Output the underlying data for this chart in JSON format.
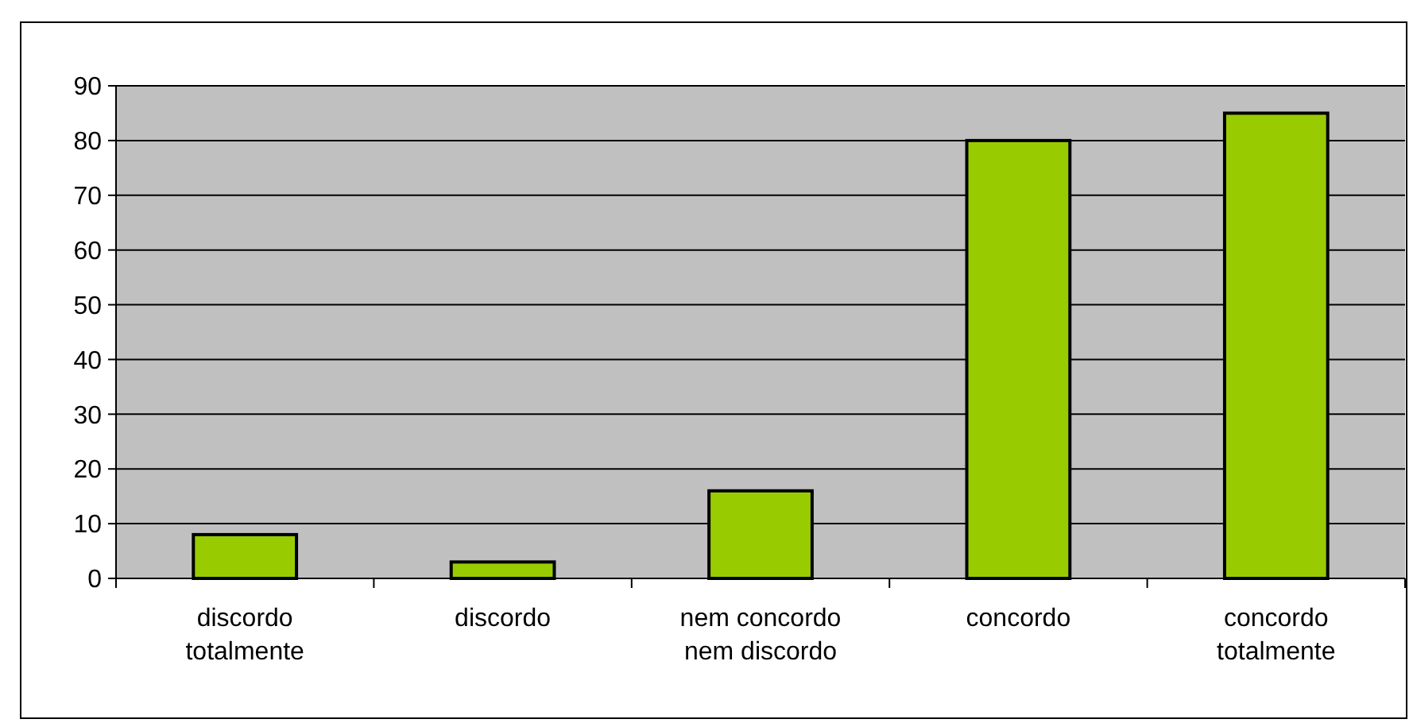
{
  "chart_data": {
    "type": "bar",
    "categories": [
      "discordo totalmente",
      "discordo",
      "nem concordo nem discordo",
      "concordo",
      "concordo totalmente"
    ],
    "values": [
      8,
      3,
      16,
      80,
      85
    ],
    "color": "#99cc00",
    "ylim": [
      0,
      90
    ],
    "yticks": [
      0,
      10,
      20,
      30,
      40,
      50,
      60,
      70,
      80,
      90
    ],
    "grid": "y"
  }
}
